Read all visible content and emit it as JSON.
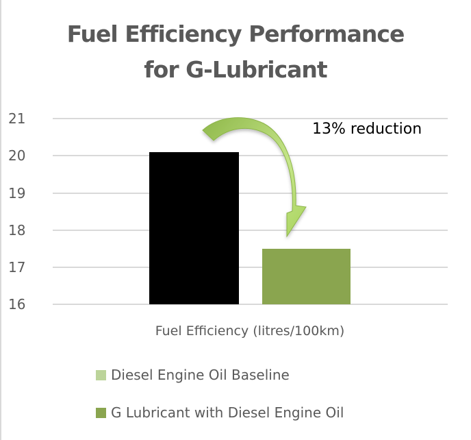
{
  "chart_data": {
    "type": "bar",
    "title": "Fuel Efficiency Performance for G-Lubricant",
    "title_lines": [
      "Fuel Efficiency Performance",
      "for G-Lubricant"
    ],
    "xlabel": "Fuel Efficiency (litres/100km)",
    "ylabel": "",
    "categories": [
      "Fuel Efficiency (litres/100km)"
    ],
    "series": [
      {
        "name": "Diesel Engine Oil Baseline",
        "values": [
          20.1
        ],
        "color": "#000000",
        "legend_color": "#bcd49a"
      },
      {
        "name": "G Lubricant with Diesel Engine Oil",
        "values": [
          17.5
        ],
        "color": "#8aa54f",
        "legend_color": "#8aa54f"
      }
    ],
    "ylim": [
      16,
      21
    ],
    "yticks": [
      21,
      20,
      19,
      18,
      17,
      16
    ],
    "grid": true,
    "legend_position": "bottom",
    "annotations": [
      {
        "text": "13% reduction",
        "type": "curved-arrow",
        "from": "Diesel Engine Oil Baseline",
        "to": "G Lubricant with Diesel Engine Oil"
      }
    ]
  },
  "ui": {
    "yticks": [
      "21",
      "20",
      "19",
      "18",
      "17",
      "16"
    ],
    "annotation": "13% reduction",
    "legend": [
      {
        "label": "Diesel Engine Oil Baseline",
        "color": "#bcd49a"
      },
      {
        "label": "G Lubricant with Diesel Engine Oil",
        "color": "#8aa54f"
      }
    ]
  }
}
